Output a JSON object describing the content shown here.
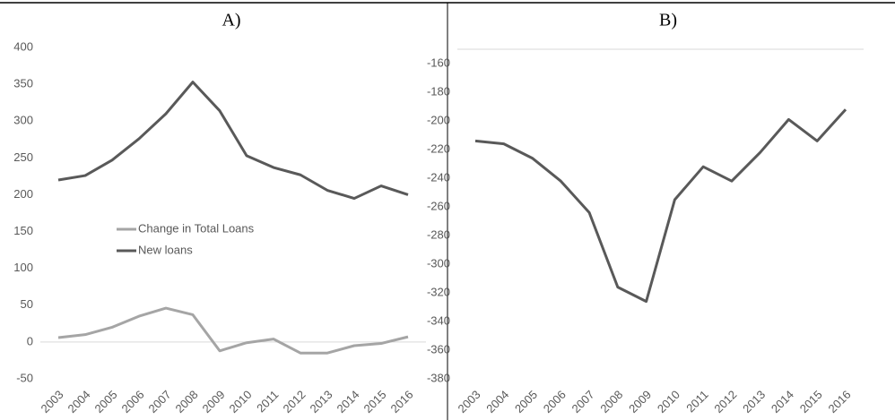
{
  "chart_data": [
    {
      "type": "line",
      "title": "A)",
      "categories": [
        "2003",
        "2004",
        "2005",
        "2006",
        "2007",
        "2008",
        "2009",
        "2010",
        "2011",
        "2012",
        "2013",
        "2014",
        "2015",
        "2016"
      ],
      "series": [
        {
          "name": "Change in Total Loans",
          "color": "#a5a5a5",
          "values": [
            6,
            10,
            20,
            35,
            46,
            37,
            -12,
            -1,
            4,
            -15,
            -15,
            -5,
            -2,
            7
          ]
        },
        {
          "name": "New loans",
          "color": "#595959",
          "values": [
            220,
            226,
            247,
            276,
            310,
            353,
            314,
            253,
            237,
            227,
            206,
            195,
            212,
            200
          ]
        }
      ],
      "ylim": [
        -50,
        400
      ],
      "yticks": [
        -50,
        0,
        50,
        100,
        150,
        200,
        250,
        300,
        350,
        400
      ],
      "legend": "center"
    },
    {
      "type": "line",
      "title": "B)",
      "categories": [
        "2003",
        "2004",
        "2005",
        "2006",
        "2007",
        "2008",
        "2009",
        "2010",
        "2011",
        "2012",
        "2013",
        "2014",
        "2015",
        "2016"
      ],
      "series": [
        {
          "color": "#595959",
          "values": [
            -214,
            -216,
            -226,
            -242,
            -264,
            -316,
            -326,
            -255,
            -232,
            -242,
            -222,
            -199,
            -214,
            -192
          ]
        }
      ],
      "ylim": [
        -380,
        -150
      ],
      "yticks": [
        -380,
        -360,
        -340,
        -320,
        -300,
        -280,
        -260,
        -240,
        -220,
        -200,
        -180,
        -160
      ]
    }
  ]
}
